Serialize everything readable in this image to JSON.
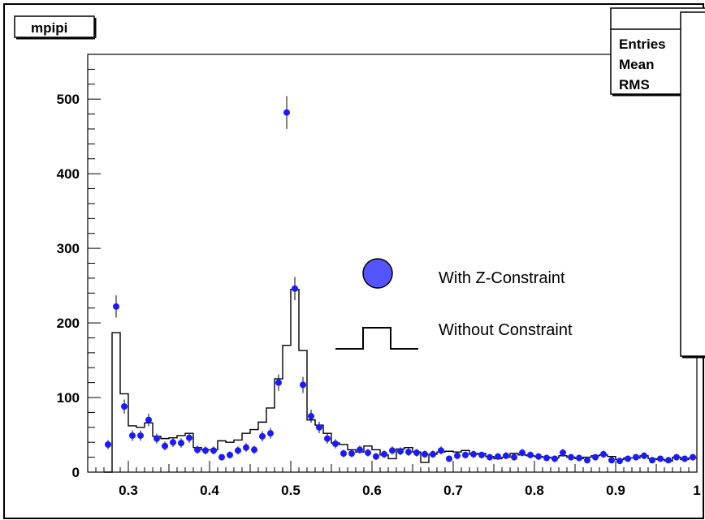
{
  "chart_data": {
    "type": "scatter",
    "title": "mpipi",
    "stats": {
      "labels": [
        "Entries",
        "Mean",
        "RMS"
      ]
    },
    "xlim": [
      0.25,
      1.0
    ],
    "ylim": [
      0,
      560
    ],
    "xticks": [
      0.3,
      0.4,
      0.5,
      0.6,
      0.7,
      0.8,
      0.9,
      1.0
    ],
    "xtick_labels": [
      "0.3",
      "0.4",
      "0.5",
      "0.6",
      "0.7",
      "0.8",
      "0.9",
      "1"
    ],
    "yticks": [
      0,
      100,
      200,
      300,
      400,
      500
    ],
    "ytick_labels": [
      "0",
      "100",
      "200",
      "300",
      "400",
      "500"
    ],
    "legend": {
      "entries": [
        "With Z-Constraint",
        "Without Constraint"
      ]
    },
    "colors": {
      "points": "#1a1aff",
      "legend_marker": "#5555ff",
      "histogram": "#000000"
    },
    "series": [
      {
        "name": "With Z-Constraint",
        "kind": "points",
        "x": [
          0.275,
          0.285,
          0.295,
          0.305,
          0.315,
          0.325,
          0.335,
          0.345,
          0.355,
          0.365,
          0.375,
          0.385,
          0.395,
          0.405,
          0.415,
          0.425,
          0.435,
          0.445,
          0.455,
          0.465,
          0.475,
          0.485,
          0.495,
          0.505,
          0.515,
          0.525,
          0.535,
          0.545,
          0.555,
          0.565,
          0.575,
          0.585,
          0.595,
          0.605,
          0.615,
          0.625,
          0.635,
          0.645,
          0.655,
          0.665,
          0.675,
          0.685,
          0.695,
          0.705,
          0.715,
          0.725,
          0.735,
          0.745,
          0.755,
          0.765,
          0.775,
          0.785,
          0.795,
          0.805,
          0.815,
          0.825,
          0.835,
          0.845,
          0.855,
          0.865,
          0.875,
          0.885,
          0.895,
          0.905,
          0.915,
          0.925,
          0.935,
          0.945,
          0.955,
          0.965,
          0.975,
          0.985,
          0.995
        ],
        "y": [
          37,
          222,
          88,
          49,
          49,
          70,
          45,
          35,
          40,
          39,
          46,
          30,
          29,
          29,
          20,
          23,
          29,
          33,
          30,
          48,
          52,
          120,
          482,
          246,
          117,
          75,
          60,
          45,
          38,
          25,
          25,
          30,
          26,
          21,
          24,
          29,
          28,
          27,
          26,
          24,
          24,
          29,
          18,
          22,
          23,
          24,
          23,
          20,
          21,
          22,
          20,
          26,
          23,
          21,
          19,
          18,
          26,
          20,
          19,
          16,
          20,
          24,
          16,
          15,
          18,
          20,
          22,
          16,
          18,
          16,
          20,
          18,
          20
        ]
      },
      {
        "name": "Without Constraint",
        "kind": "histogram",
        "bin_width": 0.01,
        "bin_start": 0.27,
        "values": [
          0,
          187,
          105,
          62,
          60,
          66,
          48,
          45,
          46,
          49,
          52,
          33,
          30,
          30,
          42,
          40,
          43,
          52,
          57,
          67,
          86,
          125,
          170,
          245,
          163,
          70,
          63,
          52,
          39,
          37,
          30,
          27,
          35,
          30,
          23,
          18,
          31,
          33,
          27,
          13,
          24,
          27,
          28,
          27,
          29,
          24,
          25,
          21,
          18,
          20,
          25,
          23,
          22,
          21,
          20,
          19,
          22,
          20,
          18,
          20,
          22,
          23,
          21,
          17,
          19,
          19,
          22,
          18,
          17,
          15,
          20,
          17,
          19
        ]
      }
    ]
  }
}
